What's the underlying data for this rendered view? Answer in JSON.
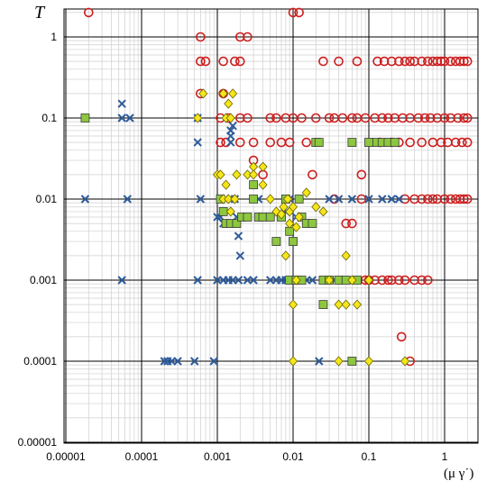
{
  "chart_data": {
    "type": "scatter",
    "title": "",
    "xlabel": "(μ γ˙)",
    "ylabel": "T",
    "xscale": "log",
    "yscale": "log",
    "xlim": [
      1e-05,
      2.5
    ],
    "ylim": [
      1e-05,
      2.2
    ],
    "grid": true,
    "x_ticks": [
      "0.00001",
      "0.0001",
      "0.001",
      "0.01",
      "0.1",
      "1"
    ],
    "y_ticks": [
      "0.00001",
      "0.0001",
      "0.001",
      "0.01",
      "0.1",
      "1"
    ],
    "series": [
      {
        "marker": "open-circle",
        "color": "#cc1f1f",
        "points": [
          [
            2e-05,
            2.0
          ],
          [
            0.0006,
            1.0
          ],
          [
            0.0007,
            0.5
          ],
          [
            0.0006,
            0.5
          ],
          [
            0.0006,
            0.2
          ],
          [
            0.0012,
            0.5
          ],
          [
            0.002,
            1.0
          ],
          [
            0.0025,
            1.0
          ],
          [
            0.002,
            0.5
          ],
          [
            0.0017,
            0.5
          ],
          [
            0.0012,
            0.2
          ],
          [
            0.0011,
            0.1
          ],
          [
            0.0011,
            0.05
          ],
          [
            0.0013,
            0.05
          ],
          [
            0.0014,
            0.1
          ],
          [
            0.002,
            0.05
          ],
          [
            0.002,
            0.1
          ],
          [
            0.0025,
            0.1
          ],
          [
            0.003,
            0.05
          ],
          [
            0.003,
            0.03
          ],
          [
            0.004,
            0.02
          ],
          [
            0.005,
            0.1
          ],
          [
            0.005,
            0.05
          ],
          [
            0.006,
            0.1
          ],
          [
            0.007,
            0.05
          ],
          [
            0.008,
            0.1
          ],
          [
            0.009,
            0.05
          ],
          [
            0.01,
            0.1
          ],
          [
            0.01,
            2.0
          ],
          [
            0.012,
            2.0
          ],
          [
            0.013,
            0.1
          ],
          [
            0.015,
            0.05
          ],
          [
            0.018,
            0.02
          ],
          [
            0.02,
            0.1
          ],
          [
            0.025,
            0.5
          ],
          [
            0.035,
            0.01
          ],
          [
            0.04,
            0.5
          ],
          [
            0.05,
            0.005
          ],
          [
            0.06,
            0.005
          ],
          [
            0.07,
            0.5
          ],
          [
            0.08,
            0.02
          ],
          [
            0.08,
            0.01
          ],
          [
            0.09,
            0.001
          ],
          [
            0.1,
            0.001
          ],
          [
            0.12,
            0.001
          ],
          [
            0.15,
            0.001
          ],
          [
            0.18,
            0.001
          ],
          [
            0.2,
            0.001
          ],
          [
            0.25,
            0.001
          ],
          [
            0.3,
            0.001
          ],
          [
            0.4,
            0.001
          ],
          [
            0.5,
            0.001
          ],
          [
            0.6,
            0.001
          ],
          [
            0.27,
            0.0002
          ],
          [
            0.35,
            0.0001
          ],
          [
            0.03,
            0.1
          ],
          [
            0.035,
            0.1
          ],
          [
            0.045,
            0.1
          ],
          [
            0.06,
            0.1
          ],
          [
            0.07,
            0.1
          ],
          [
            0.09,
            0.1
          ],
          [
            0.12,
            0.1
          ],
          [
            0.13,
            0.5
          ],
          [
            0.16,
            0.5
          ],
          [
            0.2,
            0.5
          ],
          [
            0.25,
            0.5
          ],
          [
            0.3,
            0.5
          ],
          [
            0.35,
            0.5
          ],
          [
            0.4,
            0.5
          ],
          [
            0.5,
            0.5
          ],
          [
            0.6,
            0.5
          ],
          [
            0.7,
            0.5
          ],
          [
            0.8,
            0.5
          ],
          [
            0.9,
            0.5
          ],
          [
            1.0,
            0.5
          ],
          [
            1.2,
            0.5
          ],
          [
            1.4,
            0.5
          ],
          [
            1.6,
            0.5
          ],
          [
            1.8,
            0.5
          ],
          [
            2.0,
            0.5
          ],
          [
            0.15,
            0.1
          ],
          [
            0.18,
            0.1
          ],
          [
            0.22,
            0.1
          ],
          [
            0.28,
            0.1
          ],
          [
            0.35,
            0.1
          ],
          [
            0.45,
            0.1
          ],
          [
            0.55,
            0.1
          ],
          [
            0.65,
            0.1
          ],
          [
            0.8,
            0.1
          ],
          [
            1.0,
            0.1
          ],
          [
            1.2,
            0.1
          ],
          [
            1.5,
            0.1
          ],
          [
            1.8,
            0.1
          ],
          [
            2.0,
            0.1
          ],
          [
            0.14,
            0.05
          ],
          [
            0.2,
            0.05
          ],
          [
            0.25,
            0.05
          ],
          [
            0.35,
            0.05
          ],
          [
            0.5,
            0.05
          ],
          [
            0.7,
            0.05
          ],
          [
            0.9,
            0.05
          ],
          [
            1.1,
            0.05
          ],
          [
            1.4,
            0.05
          ],
          [
            1.7,
            0.05
          ],
          [
            2.0,
            0.05
          ],
          [
            0.3,
            0.01
          ],
          [
            0.4,
            0.01
          ],
          [
            0.5,
            0.01
          ],
          [
            0.6,
            0.01
          ],
          [
            0.7,
            0.01
          ],
          [
            0.8,
            0.01
          ],
          [
            1.0,
            0.01
          ],
          [
            1.2,
            0.01
          ],
          [
            1.4,
            0.01
          ],
          [
            1.6,
            0.01
          ],
          [
            1.8,
            0.01
          ],
          [
            2.0,
            0.01
          ]
        ]
      },
      {
        "marker": "cross",
        "color": "#2e5b9a",
        "points": [
          [
            1.8e-05,
            0.01
          ],
          [
            5.5e-05,
            0.15
          ],
          [
            5.5e-05,
            0.1
          ],
          [
            7e-05,
            0.1
          ],
          [
            6.5e-05,
            0.01
          ],
          [
            5.5e-05,
            0.001
          ],
          [
            0.0002,
            0.0001
          ],
          [
            0.00022,
            0.0001
          ],
          [
            0.00025,
            0.0001
          ],
          [
            0.0003,
            0.0001
          ],
          [
            0.0005,
            0.0001
          ],
          [
            0.0009,
            0.0001
          ],
          [
            0.00055,
            0.1
          ],
          [
            0.00055,
            0.05
          ],
          [
            0.0006,
            0.01
          ],
          [
            0.00055,
            0.001
          ],
          [
            0.001,
            0.001
          ],
          [
            0.0012,
            0.001
          ],
          [
            0.0014,
            0.001
          ],
          [
            0.0016,
            0.001
          ],
          [
            0.0019,
            0.001
          ],
          [
            0.001,
            0.006
          ],
          [
            0.0011,
            0.006
          ],
          [
            0.0012,
            0.005
          ],
          [
            0.0015,
            0.06
          ],
          [
            0.0015,
            0.07
          ],
          [
            0.0015,
            0.05
          ],
          [
            0.0016,
            0.08
          ],
          [
            0.0015,
            0.01
          ],
          [
            0.0017,
            0.01
          ],
          [
            0.0018,
            0.006
          ],
          [
            0.0019,
            0.0035
          ],
          [
            0.002,
            0.002
          ],
          [
            0.0025,
            0.001
          ],
          [
            0.003,
            0.001
          ],
          [
            0.0035,
            0.01
          ],
          [
            0.004,
            0.006
          ],
          [
            0.005,
            0.001
          ],
          [
            0.006,
            0.001
          ],
          [
            0.007,
            0.001
          ],
          [
            0.008,
            0.001
          ],
          [
            0.009,
            0.001
          ],
          [
            0.01,
            0.001
          ],
          [
            0.012,
            0.001
          ],
          [
            0.007,
            0.006
          ],
          [
            0.008,
            0.007
          ],
          [
            0.009,
            0.01
          ],
          [
            0.011,
            0.006
          ],
          [
            0.015,
            0.001
          ],
          [
            0.018,
            0.001
          ],
          [
            0.022,
            0.0001
          ],
          [
            0.035,
            0.001
          ],
          [
            0.05,
            0.001
          ],
          [
            0.06,
            0.001
          ],
          [
            0.03,
            0.01
          ],
          [
            0.04,
            0.01
          ],
          [
            0.06,
            0.01
          ],
          [
            0.1,
            0.01
          ],
          [
            0.15,
            0.01
          ],
          [
            0.2,
            0.01
          ],
          [
            0.25,
            0.01
          ]
        ]
      },
      {
        "marker": "square",
        "color": "#8dc63f",
        "points": [
          [
            1.8e-05,
            0.1
          ],
          [
            0.0011,
            0.01
          ],
          [
            0.0012,
            0.007
          ],
          [
            0.0013,
            0.005
          ],
          [
            0.0015,
            0.005
          ],
          [
            0.0018,
            0.005
          ],
          [
            0.0021,
            0.006
          ],
          [
            0.0025,
            0.006
          ],
          [
            0.003,
            0.01
          ],
          [
            0.003,
            0.015
          ],
          [
            0.0035,
            0.006
          ],
          [
            0.004,
            0.006
          ],
          [
            0.005,
            0.006
          ],
          [
            0.006,
            0.003
          ],
          [
            0.007,
            0.006
          ],
          [
            0.008,
            0.01
          ],
          [
            0.009,
            0.004
          ],
          [
            0.01,
            0.003
          ],
          [
            0.012,
            0.01
          ],
          [
            0.013,
            0.006
          ],
          [
            0.015,
            0.005
          ],
          [
            0.018,
            0.005
          ],
          [
            0.02,
            0.05
          ],
          [
            0.022,
            0.05
          ],
          [
            0.025,
            0.001
          ],
          [
            0.03,
            0.001
          ],
          [
            0.04,
            0.001
          ],
          [
            0.05,
            0.001
          ],
          [
            0.06,
            0.05
          ],
          [
            0.025,
            0.0005
          ],
          [
            0.06,
            0.0001
          ],
          [
            0.07,
            0.001
          ],
          [
            0.12,
            0.05
          ],
          [
            0.15,
            0.05
          ],
          [
            0.18,
            0.05
          ],
          [
            0.22,
            0.05
          ],
          [
            0.1,
            0.05
          ],
          [
            0.009,
            0.001
          ],
          [
            0.011,
            0.001
          ],
          [
            0.013,
            0.001
          ]
        ]
      },
      {
        "marker": "diamond",
        "color": "#f5e61a",
        "points": [
          [
            0.00065,
            0.2
          ],
          [
            0.00055,
            0.1
          ],
          [
            0.0012,
            0.2
          ],
          [
            0.0013,
            0.1
          ],
          [
            0.0014,
            0.15
          ],
          [
            0.0015,
            0.1
          ],
          [
            0.0016,
            0.2
          ],
          [
            0.001,
            0.02
          ],
          [
            0.0011,
            0.02
          ],
          [
            0.0012,
            0.01
          ],
          [
            0.0013,
            0.015
          ],
          [
            0.0014,
            0.01
          ],
          [
            0.0015,
            0.007
          ],
          [
            0.0017,
            0.01
          ],
          [
            0.0018,
            0.02
          ],
          [
            0.0025,
            0.02
          ],
          [
            0.003,
            0.025
          ],
          [
            0.003,
            0.02
          ],
          [
            0.004,
            0.015
          ],
          [
            0.004,
            0.025
          ],
          [
            0.005,
            0.01
          ],
          [
            0.006,
            0.007
          ],
          [
            0.007,
            0.0065
          ],
          [
            0.0075,
            0.008
          ],
          [
            0.009,
            0.007
          ],
          [
            0.01,
            0.008
          ],
          [
            0.012,
            0.006
          ],
          [
            0.015,
            0.012
          ],
          [
            0.02,
            0.008
          ],
          [
            0.025,
            0.007
          ],
          [
            0.03,
            0.001
          ],
          [
            0.04,
            0.0005
          ],
          [
            0.05,
            0.0005
          ],
          [
            0.05,
            0.002
          ],
          [
            0.06,
            0.001
          ],
          [
            0.07,
            0.0005
          ],
          [
            0.1,
            0.001
          ],
          [
            0.008,
            0.002
          ],
          [
            0.01,
            0.0005
          ],
          [
            0.011,
            0.001
          ],
          [
            0.01,
            0.0001
          ],
          [
            0.04,
            0.0001
          ],
          [
            0.1,
            0.0001
          ],
          [
            0.3,
            0.0001
          ],
          [
            0.0085,
            0.01
          ],
          [
            0.009,
            0.005
          ],
          [
            0.011,
            0.0045
          ]
        ]
      }
    ]
  }
}
